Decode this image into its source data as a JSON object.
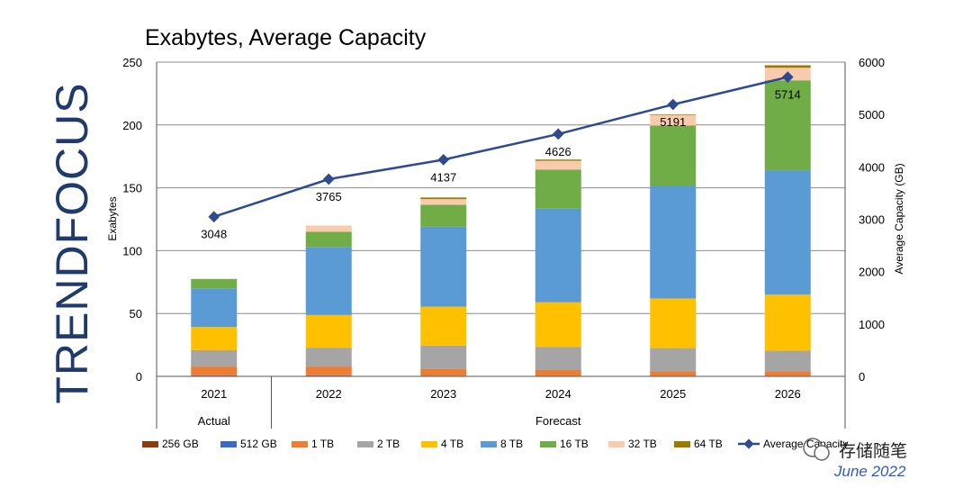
{
  "chart_data": {
    "type": "bar",
    "title": "Exabytes, Average Capacity",
    "ylabel": "Exabytes",
    "ylabel_right": "Average Capacity (GB)",
    "ylim": [
      0,
      250
    ],
    "ylim_right": [
      0,
      6000
    ],
    "yticks": [
      "0",
      "50",
      "100",
      "150",
      "200",
      "250"
    ],
    "yticks_right": [
      "0",
      "1000",
      "2000",
      "3000",
      "4000",
      "5000",
      "6000"
    ],
    "categories": [
      "2021",
      "2022",
      "2023",
      "2024",
      "2025",
      "2026"
    ],
    "groups": [
      {
        "label": "Actual",
        "categories": [
          "2021"
        ]
      },
      {
        "label": "Forecast",
        "categories": [
          "2022",
          "2023",
          "2024",
          "2025",
          "2026"
        ]
      }
    ],
    "stacked": true,
    "grid": true,
    "legend_position": "bottom",
    "series": [
      {
        "name": "256 GB",
        "color": "#8b3d0f",
        "values": [
          0.5,
          0.5,
          0.3,
          0.2,
          0.2,
          0.2
        ]
      },
      {
        "name": "512 GB",
        "color": "#3a6bc4",
        "values": [
          0.3,
          0.3,
          0.2,
          0.2,
          0.2,
          0.2
        ]
      },
      {
        "name": "1 TB",
        "color": "#ed7d31",
        "values": [
          7,
          7,
          5.5,
          4.6,
          3.6,
          3.6
        ]
      },
      {
        "name": "2 TB",
        "color": "#a5a5a5",
        "values": [
          13,
          15,
          18.5,
          18.5,
          18.5,
          16.5
        ]
      },
      {
        "name": "4 TB",
        "color": "#ffc000",
        "values": [
          18.5,
          26,
          31,
          35.5,
          39.5,
          44.5
        ]
      },
      {
        "name": "8 TB",
        "color": "#5b9bd5",
        "values": [
          30.7,
          54.2,
          63.5,
          74.5,
          89.5,
          99
        ]
      },
      {
        "name": "16 TB",
        "color": "#70ad47",
        "values": [
          7.5,
          12,
          17.5,
          31,
          48,
          71.5
        ]
      },
      {
        "name": "32 TB",
        "color": "#f8cbad",
        "values": [
          0,
          5,
          4.5,
          7,
          8.5,
          10
        ]
      },
      {
        "name": "64 TB",
        "color": "#9c7a00",
        "values": [
          0,
          0,
          1.3,
          1,
          0.5,
          2
        ]
      }
    ],
    "line_series": {
      "name": "Average Capacity",
      "legend_text": "Average Capacity",
      "color": "#2f4b8f",
      "axis": "right",
      "values": [
        3048,
        3765,
        4137,
        4626,
        5191,
        5714
      ],
      "labels": [
        "3048",
        "3765",
        "4137",
        "4626",
        "5191",
        "5714"
      ]
    }
  },
  "branding": {
    "logo_text": "TRENDFOCUS",
    "watermark_text": "存储随笔",
    "date_text": "June 2022"
  }
}
